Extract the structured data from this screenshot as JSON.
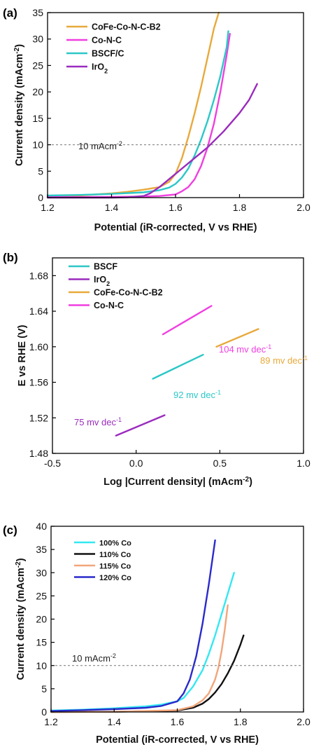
{
  "chart_data": [
    {
      "type": "line",
      "panel_label": "(a)",
      "xlabel": "Potential (iR-corrected, V vs RHE)",
      "ylabel": "Current density (mAcm⁻²)",
      "xlim": [
        1.2,
        2.0
      ],
      "ylim": [
        0,
        35
      ],
      "xticks": [
        "1.2",
        "1.4",
        "1.6",
        "1.8",
        "2.0"
      ],
      "yticks": [
        "0",
        "5",
        "10",
        "15",
        "20",
        "25",
        "30",
        "35"
      ],
      "grid": false,
      "legend_position": "top-left",
      "reference_line": {
        "y": 10,
        "label": "10 mAcm⁻²",
        "style": "dashed"
      },
      "series": [
        {
          "name": "CoFe-Co-N-C-B2",
          "color": "#E8A93B",
          "x": [
            1.2,
            1.3,
            1.4,
            1.45,
            1.5,
            1.55,
            1.58,
            1.6,
            1.62,
            1.64,
            1.66,
            1.68,
            1.7,
            1.72,
            1.735
          ],
          "y": [
            0.2,
            0.4,
            0.8,
            1.1,
            1.5,
            2.0,
            3.0,
            4.5,
            7.5,
            11.5,
            16.0,
            21.0,
            26.5,
            32.0,
            35.0
          ]
        },
        {
          "name": "Co-N-C",
          "color": "#F03FE0",
          "x": [
            1.2,
            1.3,
            1.4,
            1.5,
            1.55,
            1.6,
            1.62,
            1.64,
            1.66,
            1.68,
            1.7,
            1.72,
            1.74,
            1.76,
            1.77
          ],
          "y": [
            0.1,
            0.1,
            0.15,
            0.2,
            0.3,
            0.6,
            1.2,
            2.0,
            3.5,
            6.0,
            9.5,
            14.0,
            20.0,
            27.0,
            31.0
          ]
        },
        {
          "name": "BSCF/C",
          "color": "#2CC7C7",
          "x": [
            1.2,
            1.3,
            1.4,
            1.5,
            1.55,
            1.58,
            1.6,
            1.62,
            1.64,
            1.66,
            1.68,
            1.7,
            1.72,
            1.74,
            1.76,
            1.765
          ],
          "y": [
            0.4,
            0.5,
            0.7,
            1.0,
            1.4,
            1.9,
            2.6,
            3.8,
            5.5,
            8.0,
            11.0,
            14.5,
            18.5,
            23.0,
            28.5,
            31.5
          ]
        },
        {
          "name": "IrO₂",
          "color": "#9B2BBE",
          "x": [
            1.2,
            1.3,
            1.4,
            1.45,
            1.5,
            1.52,
            1.55,
            1.6,
            1.65,
            1.7,
            1.75,
            1.8,
            1.83,
            1.855
          ],
          "y": [
            0,
            0,
            0,
            0.05,
            0.3,
            0.8,
            2.0,
            4.5,
            7.0,
            9.5,
            12.5,
            16.0,
            18.5,
            21.5
          ]
        }
      ]
    },
    {
      "type": "line",
      "panel_label": "(b)",
      "xlabel": "Log |Current density| (mAcm⁻²)",
      "ylabel": "E vs RHE (V)",
      "xlim": [
        -0.5,
        1.0
      ],
      "ylim": [
        1.48,
        1.7
      ],
      "xticks": [
        "-0.5",
        "0.0",
        "0.5",
        "1.0"
      ],
      "yticks": [
        "1.48",
        "1.52",
        "1.56",
        "1.60",
        "1.64",
        "1.68"
      ],
      "grid": false,
      "legend_position": "top-left",
      "series": [
        {
          "name": "BSCF",
          "color": "#2CC7C7",
          "x": [
            0.1,
            0.4
          ],
          "y": [
            1.564,
            1.591
          ],
          "annotation": "92 mv dec⁻¹"
        },
        {
          "name": "IrO₂",
          "color": "#9B2BBE",
          "x": [
            -0.12,
            0.17
          ],
          "y": [
            1.5,
            1.523
          ],
          "annotation": "75 mv dec⁻¹"
        },
        {
          "name": "CoFe-Co-N-C-B2",
          "color": "#E8A93B",
          "x": [
            0.48,
            0.73
          ],
          "y": [
            1.6,
            1.62
          ],
          "annotation": "89 mv dec⁻¹"
        },
        {
          "name": "Co-N-C",
          "color": "#F03FE0",
          "x": [
            0.16,
            0.45
          ],
          "y": [
            1.614,
            1.646
          ],
          "annotation": "104 mv dec⁻¹"
        }
      ]
    },
    {
      "type": "line",
      "panel_label": "(c)",
      "xlabel": "Potential (iR-corrected, V vs RHE)",
      "ylabel": "Current density (mAcm⁻²)",
      "xlim": [
        1.2,
        2.0
      ],
      "ylim": [
        0,
        40
      ],
      "xticks": [
        "1.2",
        "1.4",
        "1.6",
        "1.8",
        "2.0"
      ],
      "yticks": [
        "0",
        "5",
        "10",
        "15",
        "20",
        "25",
        "30",
        "35",
        "40"
      ],
      "grid": false,
      "legend_position": "top-left",
      "reference_line": {
        "y": 10,
        "label": "10 mAcm⁻²",
        "style": "dashed"
      },
      "series": [
        {
          "name": "100% Co",
          "color": "#33E8F2",
          "x": [
            1.2,
            1.3,
            1.4,
            1.5,
            1.55,
            1.6,
            1.62,
            1.65,
            1.68,
            1.7,
            1.72,
            1.74,
            1.76,
            1.78
          ],
          "y": [
            0.3,
            0.5,
            0.8,
            1.2,
            1.6,
            2.3,
            3.0,
            5.5,
            9.0,
            12.5,
            16.5,
            21.0,
            25.5,
            30.0
          ]
        },
        {
          "name": "110% Co",
          "color": "#111111",
          "x": [
            1.2,
            1.4,
            1.6,
            1.65,
            1.68,
            1.7,
            1.72,
            1.74,
            1.76,
            1.78,
            1.8,
            1.81
          ],
          "y": [
            0,
            0.05,
            0.3,
            0.9,
            1.8,
            2.8,
            4.2,
            6.0,
            8.3,
            11.0,
            14.5,
            16.5
          ]
        },
        {
          "name": "115% Co",
          "color": "#F2A57A",
          "x": [
            1.2,
            1.4,
            1.6,
            1.65,
            1.68,
            1.7,
            1.72,
            1.73,
            1.74,
            1.75,
            1.76
          ],
          "y": [
            0,
            0.05,
            0.4,
            1.2,
            2.5,
            4.0,
            7.0,
            9.5,
            13.0,
            17.5,
            23.0
          ]
        },
        {
          "name": "120% Co",
          "color": "#2A2ACC",
          "x": [
            1.2,
            1.3,
            1.4,
            1.5,
            1.55,
            1.6,
            1.62,
            1.64,
            1.66,
            1.68,
            1.7,
            1.72
          ],
          "y": [
            0.2,
            0.4,
            0.6,
            0.9,
            1.3,
            2.3,
            4.0,
            7.0,
            12.0,
            19.0,
            27.5,
            37.0
          ]
        }
      ]
    }
  ]
}
